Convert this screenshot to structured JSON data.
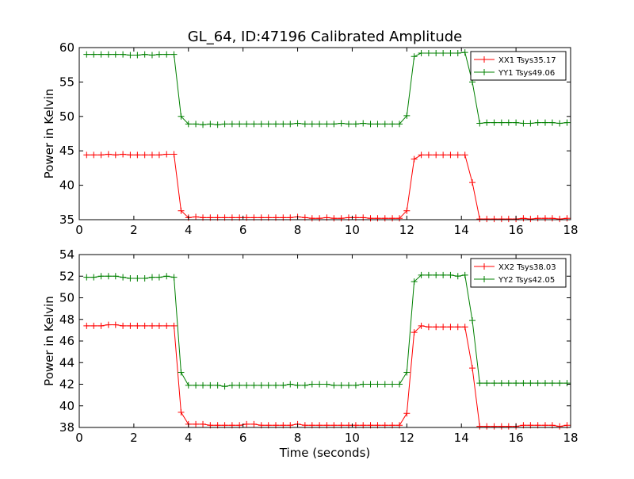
{
  "title": "GL_64, ID:47196 Calibrated Amplitude",
  "colors": {
    "xx": "#ff0000",
    "yy": "#008000"
  },
  "chart_data": [
    {
      "type": "line",
      "xlabel": "",
      "ylabel": "Power in Kelvin",
      "xlim": [
        0,
        18
      ],
      "ylim": [
        35,
        60
      ],
      "xticks": [
        0,
        2,
        4,
        6,
        8,
        10,
        12,
        14,
        16,
        18
      ],
      "yticks": [
        35,
        40,
        45,
        50,
        55,
        60
      ],
      "grid": false,
      "legend_position": "top-right",
      "x": [
        0.27,
        0.53,
        0.8,
        1.07,
        1.33,
        1.6,
        1.87,
        2.13,
        2.4,
        2.67,
        2.93,
        3.2,
        3.47,
        3.73,
        4.0,
        4.27,
        4.53,
        4.8,
        5.07,
        5.33,
        5.6,
        5.87,
        6.13,
        6.4,
        6.67,
        6.93,
        7.2,
        7.47,
        7.73,
        8.0,
        8.27,
        8.53,
        8.8,
        9.07,
        9.33,
        9.6,
        9.87,
        10.13,
        10.4,
        10.67,
        10.93,
        11.2,
        11.47,
        11.73,
        12.0,
        12.27,
        12.53,
        12.8,
        13.07,
        13.33,
        13.6,
        13.87,
        14.13,
        14.4,
        14.67,
        14.93,
        15.2,
        15.47,
        15.73,
        16.0,
        16.27,
        16.53,
        16.8,
        17.07,
        17.33,
        17.6,
        17.87
      ],
      "series": [
        {
          "name": "XX1 Tsys35.17",
          "color": "#ff0000",
          "values": [
            44.4,
            44.4,
            44.4,
            44.5,
            44.4,
            44.5,
            44.4,
            44.4,
            44.4,
            44.4,
            44.4,
            44.5,
            44.5,
            36.3,
            35.3,
            35.4,
            35.3,
            35.3,
            35.3,
            35.3,
            35.3,
            35.3,
            35.3,
            35.3,
            35.3,
            35.3,
            35.3,
            35.3,
            35.3,
            35.4,
            35.3,
            35.2,
            35.2,
            35.3,
            35.2,
            35.2,
            35.3,
            35.3,
            35.3,
            35.2,
            35.2,
            35.2,
            35.2,
            35.2,
            36.3,
            43.8,
            44.4,
            44.4,
            44.4,
            44.4,
            44.4,
            44.4,
            44.4,
            40.4,
            35.1,
            35.1,
            35.1,
            35.1,
            35.1,
            35.1,
            35.2,
            35.1,
            35.2,
            35.2,
            35.2,
            35.1,
            35.2
          ]
        },
        {
          "name": "YY1 Tsys49.06",
          "color": "#008000",
          "values": [
            59.0,
            59.0,
            59.0,
            59.0,
            59.0,
            59.0,
            58.9,
            58.9,
            59.0,
            58.9,
            59.0,
            59.0,
            59.0,
            50.0,
            48.9,
            48.9,
            48.8,
            48.9,
            48.8,
            48.9,
            48.9,
            48.9,
            48.9,
            48.9,
            48.9,
            48.9,
            48.9,
            48.9,
            48.9,
            49.0,
            48.9,
            48.9,
            48.9,
            48.9,
            48.9,
            49.0,
            48.9,
            48.9,
            49.0,
            48.9,
            48.9,
            48.9,
            48.9,
            48.9,
            50.1,
            58.7,
            59.2,
            59.2,
            59.2,
            59.2,
            59.2,
            59.2,
            59.3,
            55.0,
            49.0,
            49.1,
            49.1,
            49.1,
            49.1,
            49.1,
            49.0,
            49.0,
            49.1,
            49.1,
            49.1,
            49.0,
            49.1
          ]
        }
      ]
    },
    {
      "type": "line",
      "xlabel": "Time (seconds)",
      "ylabel": "Power in Kelvin",
      "xlim": [
        0,
        18
      ],
      "ylim": [
        38,
        54
      ],
      "xticks": [
        0,
        2,
        4,
        6,
        8,
        10,
        12,
        14,
        16,
        18
      ],
      "yticks": [
        38,
        40,
        42,
        44,
        46,
        48,
        50,
        52,
        54
      ],
      "grid": false,
      "legend_position": "top-right",
      "x": [
        0.27,
        0.53,
        0.8,
        1.07,
        1.33,
        1.6,
        1.87,
        2.13,
        2.4,
        2.67,
        2.93,
        3.2,
        3.47,
        3.73,
        4.0,
        4.27,
        4.53,
        4.8,
        5.07,
        5.33,
        5.6,
        5.87,
        6.13,
        6.4,
        6.67,
        6.93,
        7.2,
        7.47,
        7.73,
        8.0,
        8.27,
        8.53,
        8.8,
        9.07,
        9.33,
        9.6,
        9.87,
        10.13,
        10.4,
        10.67,
        10.93,
        11.2,
        11.47,
        11.73,
        12.0,
        12.27,
        12.53,
        12.8,
        13.07,
        13.33,
        13.6,
        13.87,
        14.13,
        14.4,
        14.67,
        14.93,
        15.2,
        15.47,
        15.73,
        16.0,
        16.27,
        16.53,
        16.8,
        17.07,
        17.33,
        17.6,
        17.87
      ],
      "series": [
        {
          "name": "XX2 Tsys38.03",
          "color": "#ff0000",
          "values": [
            47.4,
            47.4,
            47.4,
            47.5,
            47.5,
            47.4,
            47.4,
            47.4,
            47.4,
            47.4,
            47.4,
            47.4,
            47.4,
            39.4,
            38.3,
            38.3,
            38.3,
            38.2,
            38.2,
            38.2,
            38.2,
            38.2,
            38.3,
            38.3,
            38.2,
            38.2,
            38.2,
            38.2,
            38.2,
            38.3,
            38.2,
            38.2,
            38.2,
            38.2,
            38.2,
            38.2,
            38.2,
            38.2,
            38.2,
            38.2,
            38.2,
            38.2,
            38.2,
            38.2,
            39.3,
            46.8,
            47.4,
            47.3,
            47.3,
            47.3,
            47.3,
            47.3,
            47.3,
            43.5,
            38.1,
            38.1,
            38.1,
            38.1,
            38.1,
            38.1,
            38.2,
            38.2,
            38.2,
            38.2,
            38.2,
            38.1,
            38.2
          ]
        },
        {
          "name": "YY2 Tsys42.05",
          "color": "#008000",
          "values": [
            51.9,
            51.9,
            52.0,
            52.0,
            52.0,
            51.9,
            51.8,
            51.8,
            51.8,
            51.9,
            51.9,
            52.0,
            51.9,
            43.1,
            41.9,
            41.9,
            41.9,
            41.9,
            41.9,
            41.8,
            41.9,
            41.9,
            41.9,
            41.9,
            41.9,
            41.9,
            41.9,
            41.9,
            42.0,
            41.9,
            41.9,
            42.0,
            42.0,
            42.0,
            41.9,
            41.9,
            41.9,
            41.9,
            42.0,
            42.0,
            42.0,
            42.0,
            42.0,
            42.0,
            43.1,
            51.5,
            52.1,
            52.1,
            52.1,
            52.1,
            52.1,
            52.0,
            52.1,
            47.9,
            42.1,
            42.1,
            42.1,
            42.1,
            42.1,
            42.1,
            42.1,
            42.1,
            42.1,
            42.1,
            42.1,
            42.1,
            42.1
          ]
        }
      ]
    }
  ]
}
